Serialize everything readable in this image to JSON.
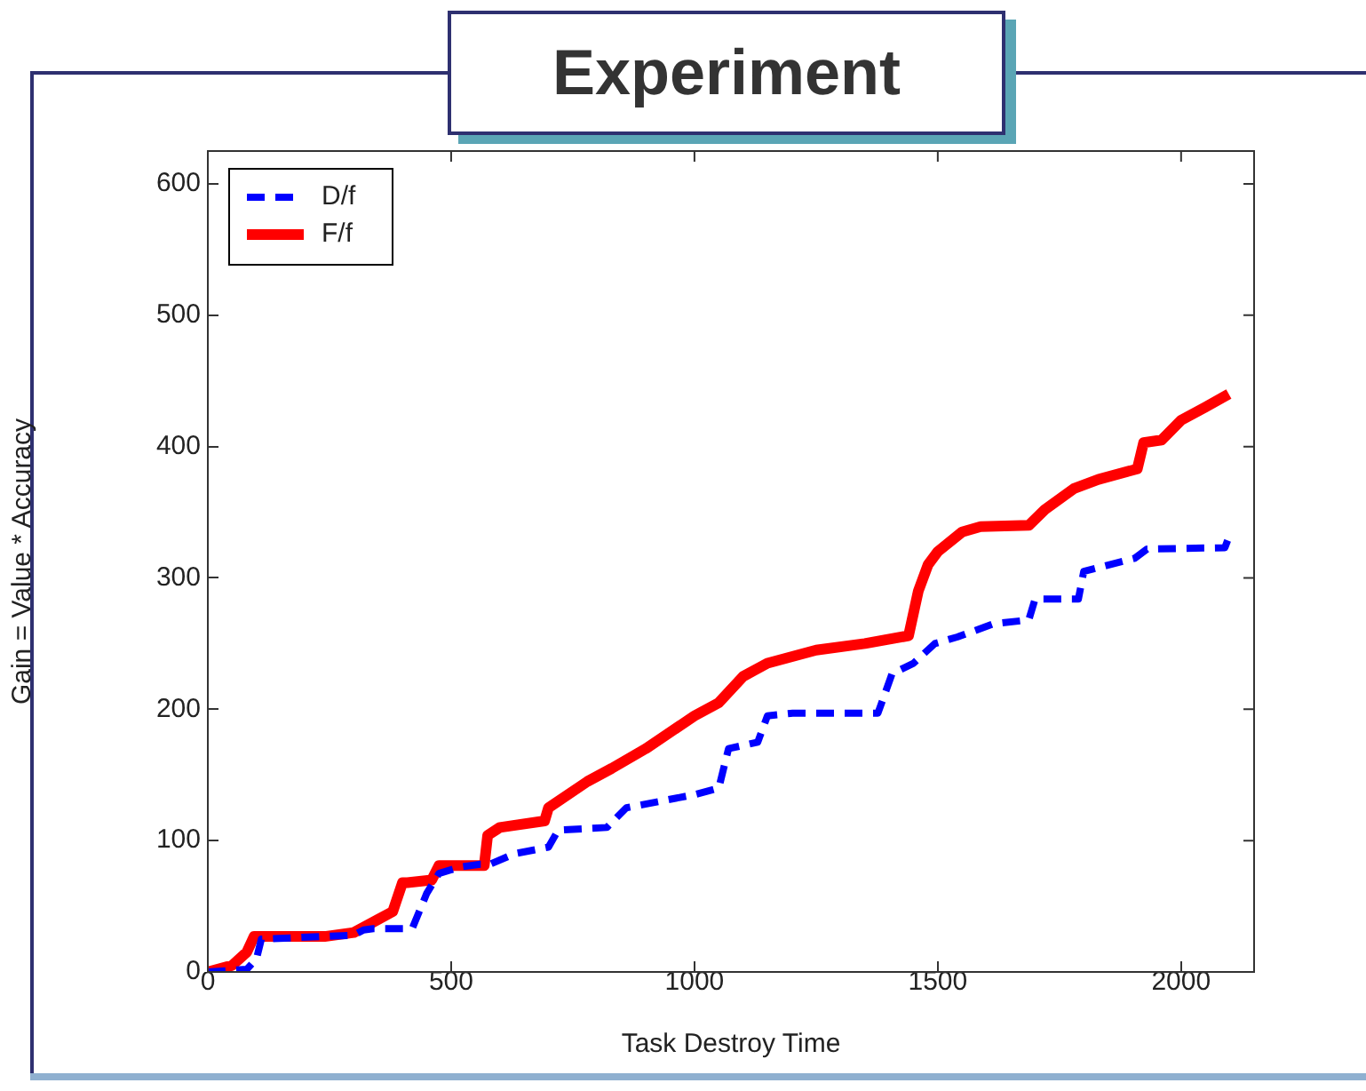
{
  "chart_data": {
    "type": "line",
    "title": "Experiment",
    "xlabel": "Task Destroy Time",
    "ylabel": "Gain = Value * Accuracy",
    "xlim": [
      0,
      2150
    ],
    "xticks": [
      0,
      500,
      1000,
      1500,
      2000
    ],
    "ylim": [
      0,
      625
    ],
    "yticks": [
      0,
      100,
      200,
      300,
      400,
      500,
      600
    ],
    "grid": false,
    "legend": "top left",
    "marker": "none",
    "series": [
      {
        "name": "D/f",
        "color": "#0000ff",
        "line_style": "dashed",
        "x": [
          0,
          80,
          100,
          110,
          300,
          320,
          340,
          420,
          450,
          475,
          520,
          560,
          580,
          630,
          700,
          720,
          820,
          860,
          1000,
          1050,
          1070,
          1130,
          1150,
          1202,
          1377,
          1406,
          1450,
          1494,
          1540,
          1614,
          1687,
          1700,
          1789,
          1800,
          1905,
          1930,
          2090,
          2100
        ],
        "values": [
          0,
          2,
          10,
          25,
          28,
          32,
          33,
          33,
          60,
          75,
          80,
          82,
          82,
          90,
          95,
          108,
          110,
          125,
          135,
          140,
          170,
          175,
          195,
          197,
          197,
          227,
          235,
          250,
          255,
          265,
          268,
          284,
          284,
          305,
          315,
          322,
          323,
          333
        ]
      },
      {
        "name": "F/f",
        "color": "#ff0000",
        "line_style": "solid",
        "x": [
          0,
          50,
          80,
          95,
          240,
          300,
          350,
          380,
          400,
          410,
          460,
          475,
          568,
          575,
          600,
          692,
          700,
          780,
          830,
          900,
          1000,
          1050,
          1100,
          1150,
          1250,
          1350,
          1440,
          1460,
          1480,
          1500,
          1550,
          1588,
          1687,
          1720,
          1780,
          1830,
          1910,
          1923,
          1960,
          2000,
          2050,
          2098
        ],
        "values": [
          0,
          5,
          15,
          27,
          27,
          30,
          40,
          46,
          68,
          68,
          70,
          81,
          81,
          104,
          110,
          115,
          125,
          145,
          155,
          170,
          195,
          205,
          225,
          235,
          245,
          250,
          256,
          290,
          310,
          320,
          335,
          339,
          340,
          352,
          368,
          375,
          383,
          403,
          405,
          420,
          430,
          440
        ]
      }
    ]
  }
}
